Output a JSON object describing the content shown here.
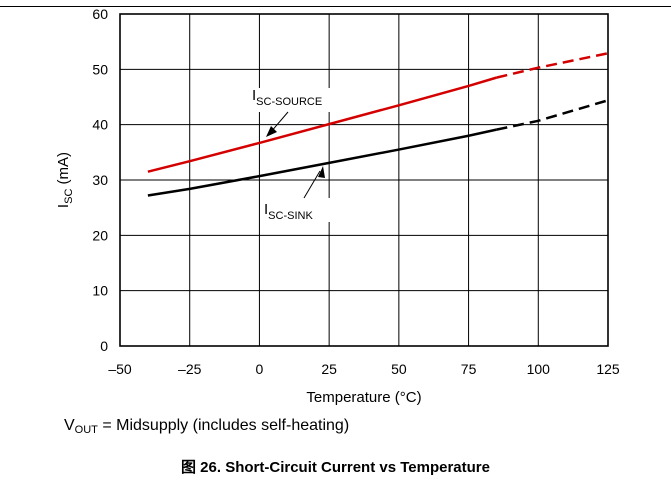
{
  "chart_data": {
    "type": "line",
    "xlabel": "Temperature (°C)",
    "ylabel": {
      "main": "I",
      "sub": "SC",
      "rest": " (mA)"
    },
    "xlim": [
      -50,
      125
    ],
    "ylim": [
      0,
      60
    ],
    "x_ticks": [
      -50,
      -25,
      0,
      25,
      50,
      75,
      100,
      125
    ],
    "y_ticks": [
      0,
      10,
      20,
      30,
      40,
      50,
      60
    ],
    "x_tick_labels": [
      "–50",
      "–25",
      "0",
      "25",
      "50",
      "75",
      "100",
      "125"
    ],
    "y_tick_labels": [
      "0",
      "10",
      "20",
      "30",
      "40",
      "50",
      "60"
    ],
    "grid": true,
    "series": [
      {
        "name": "ISC-SOURCE",
        "label_main": "I",
        "label_sub": "SC-SOURCE",
        "color": "#d40000",
        "x": [
          -40,
          -25,
          0,
          25,
          50,
          75,
          85
        ],
        "y": [
          31.5,
          33.4,
          36.7,
          40.1,
          43.5,
          47.0,
          48.5
        ],
        "dashed_x": [
          85,
          100,
          125
        ],
        "dashed_y": [
          48.5,
          50.3,
          52.9
        ]
      },
      {
        "name": "ISC-SINK",
        "label_main": "I",
        "label_sub": "SC-SINK",
        "color": "#000000",
        "x": [
          -40,
          -25,
          0,
          25,
          50,
          75,
          85
        ],
        "y": [
          27.2,
          28.4,
          30.7,
          33.1,
          35.5,
          38.0,
          39.1
        ],
        "dashed_x": [
          85,
          100,
          125
        ],
        "dashed_y": [
          39.1,
          40.7,
          44.4
        ]
      }
    ]
  },
  "note": {
    "pre": "V",
    "sub": "OUT",
    "post": " = Midsupply (includes self-heating)"
  },
  "caption": "图 26.  Short-Circuit Current vs Temperature"
}
